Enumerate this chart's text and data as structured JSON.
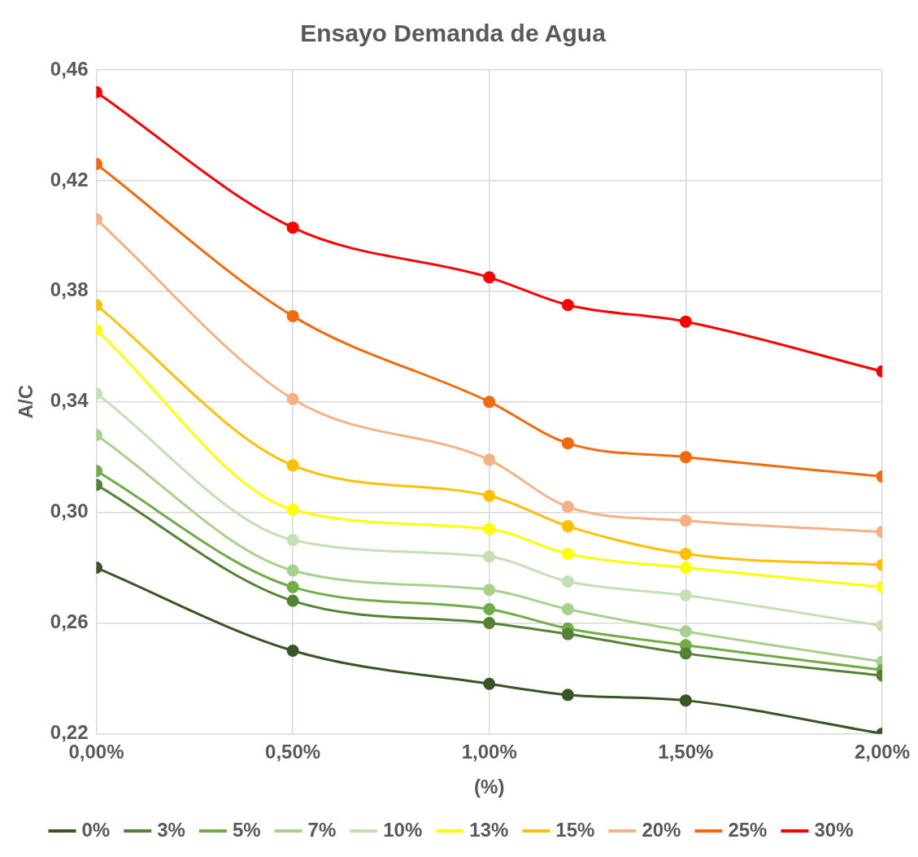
{
  "chart_data": {
    "type": "line",
    "title": "Ensayo Demanda de Agua",
    "xlabel": "(%)",
    "ylabel": "A/C",
    "x": [
      0,
      0.5,
      1.0,
      1.2,
      1.5,
      2.0
    ],
    "xlim": [
      0,
      2
    ],
    "xticks": [
      {
        "value": 0,
        "label": "0,00%"
      },
      {
        "value": 0.5,
        "label": "0,50%"
      },
      {
        "value": 1,
        "label": "1,00%"
      },
      {
        "value": 1.5,
        "label": "1,50%"
      },
      {
        "value": 2,
        "label": "2,00%"
      }
    ],
    "ylim": [
      0.22,
      0.46
    ],
    "yticks": [
      {
        "value": 0.22,
        "label": "0,22"
      },
      {
        "value": 0.26,
        "label": "0,26"
      },
      {
        "value": 0.3,
        "label": "0,30"
      },
      {
        "value": 0.34,
        "label": "0,34"
      },
      {
        "value": 0.38,
        "label": "0,38"
      },
      {
        "value": 0.42,
        "label": "0,42"
      },
      {
        "value": 0.46,
        "label": "0,46"
      }
    ],
    "grid": true,
    "legend": "bottom",
    "marker": "circle",
    "line_style": "solid",
    "series": [
      {
        "name": "0%",
        "color": "#375623",
        "values": [
          0.28,
          0.25,
          0.238,
          0.234,
          0.232,
          0.22
        ]
      },
      {
        "name": "3%",
        "color": "#548235",
        "values": [
          0.31,
          0.268,
          0.26,
          0.256,
          0.249,
          0.241
        ]
      },
      {
        "name": "5%",
        "color": "#70ad47",
        "values": [
          0.315,
          0.273,
          0.265,
          0.258,
          0.252,
          0.243
        ]
      },
      {
        "name": "7%",
        "color": "#a9d18e",
        "values": [
          0.328,
          0.279,
          0.272,
          0.265,
          0.257,
          0.246
        ]
      },
      {
        "name": "10%",
        "color": "#c5e0b4",
        "values": [
          0.343,
          0.29,
          0.284,
          0.275,
          0.27,
          0.259
        ]
      },
      {
        "name": "13%",
        "color": "#ffff00",
        "values": [
          0.366,
          0.301,
          0.294,
          0.285,
          0.28,
          0.273
        ]
      },
      {
        "name": "15%",
        "color": "#ffc000",
        "values": [
          0.375,
          0.317,
          0.306,
          0.295,
          0.285,
          0.281
        ]
      },
      {
        "name": "20%",
        "color": "#f4b183",
        "values": [
          0.406,
          0.341,
          0.319,
          0.302,
          0.297,
          0.293
        ]
      },
      {
        "name": "25%",
        "color": "#f26a0a",
        "values": [
          0.426,
          0.371,
          0.34,
          0.325,
          0.32,
          0.313
        ]
      },
      {
        "name": "30%",
        "color": "#ff0000",
        "values": [
          0.452,
          0.403,
          0.385,
          0.375,
          0.369,
          0.351
        ]
      }
    ]
  }
}
